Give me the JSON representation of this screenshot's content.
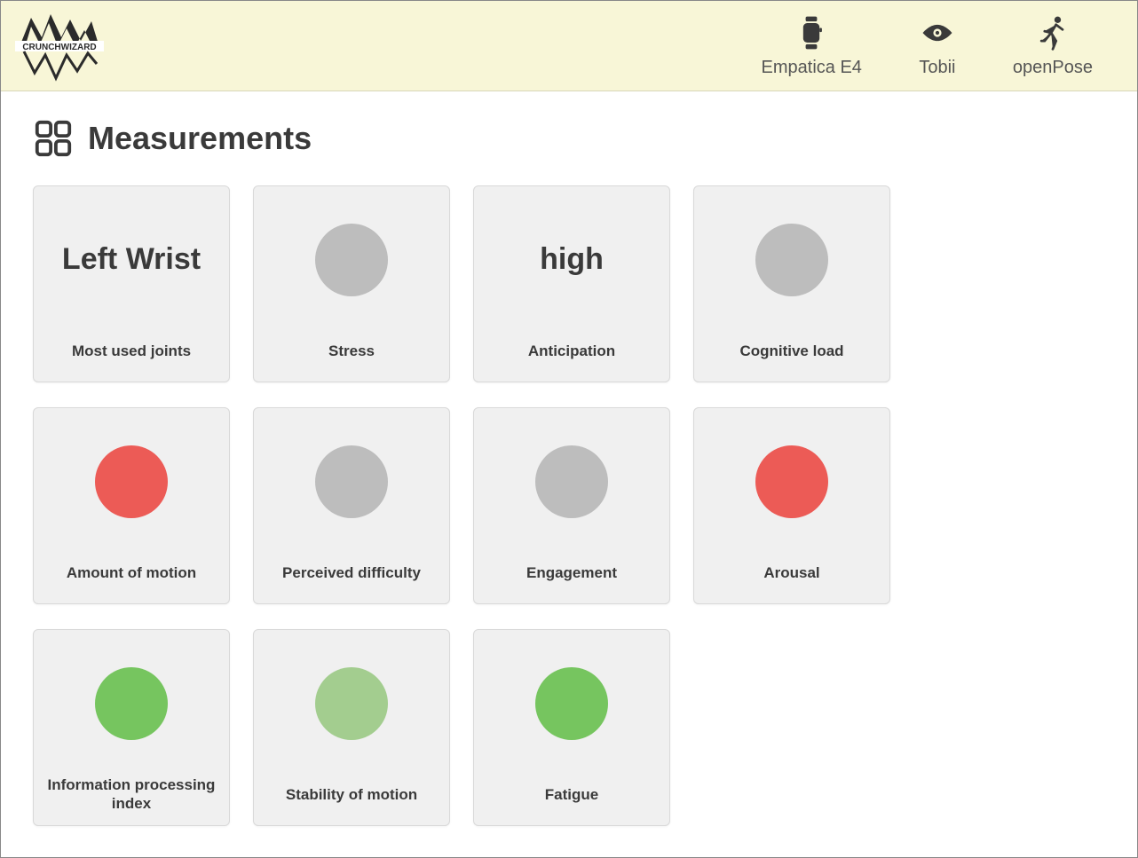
{
  "brand": {
    "name": "CRUNCHWIZARD"
  },
  "nav": [
    {
      "id": "empatica",
      "label": "Empatica E4",
      "icon": "smartwatch-icon"
    },
    {
      "id": "tobii",
      "label": "Tobii",
      "icon": "eye-icon"
    },
    {
      "id": "openpose",
      "label": "openPose",
      "icon": "running-person-icon"
    }
  ],
  "section": {
    "title": "Measurements"
  },
  "colors": {
    "gray": "#bdbdbd",
    "red": "#ec5b56",
    "green": "#76c55f",
    "green_muted": "#a3cd8f"
  },
  "cards": [
    {
      "label": "Most used joints",
      "kind": "text",
      "value": "Left Wrist"
    },
    {
      "label": "Stress",
      "kind": "indicator",
      "color": "#bdbdbd"
    },
    {
      "label": "Anticipation",
      "kind": "text",
      "value": "high"
    },
    {
      "label": "Cognitive load",
      "kind": "indicator",
      "color": "#bdbdbd"
    },
    {
      "label": "Amount of motion",
      "kind": "indicator",
      "color": "#ec5b56"
    },
    {
      "label": "Perceived difficulty",
      "kind": "indicator",
      "color": "#bdbdbd"
    },
    {
      "label": "Engagement",
      "kind": "indicator",
      "color": "#bdbdbd"
    },
    {
      "label": "Arousal",
      "kind": "indicator",
      "color": "#ec5b56"
    },
    {
      "label": "Information processing index",
      "kind": "indicator",
      "color": "#76c55f"
    },
    {
      "label": "Stability of motion",
      "kind": "indicator",
      "color": "#a3cd8f"
    },
    {
      "label": "Fatigue",
      "kind": "indicator",
      "color": "#76c55f"
    }
  ]
}
